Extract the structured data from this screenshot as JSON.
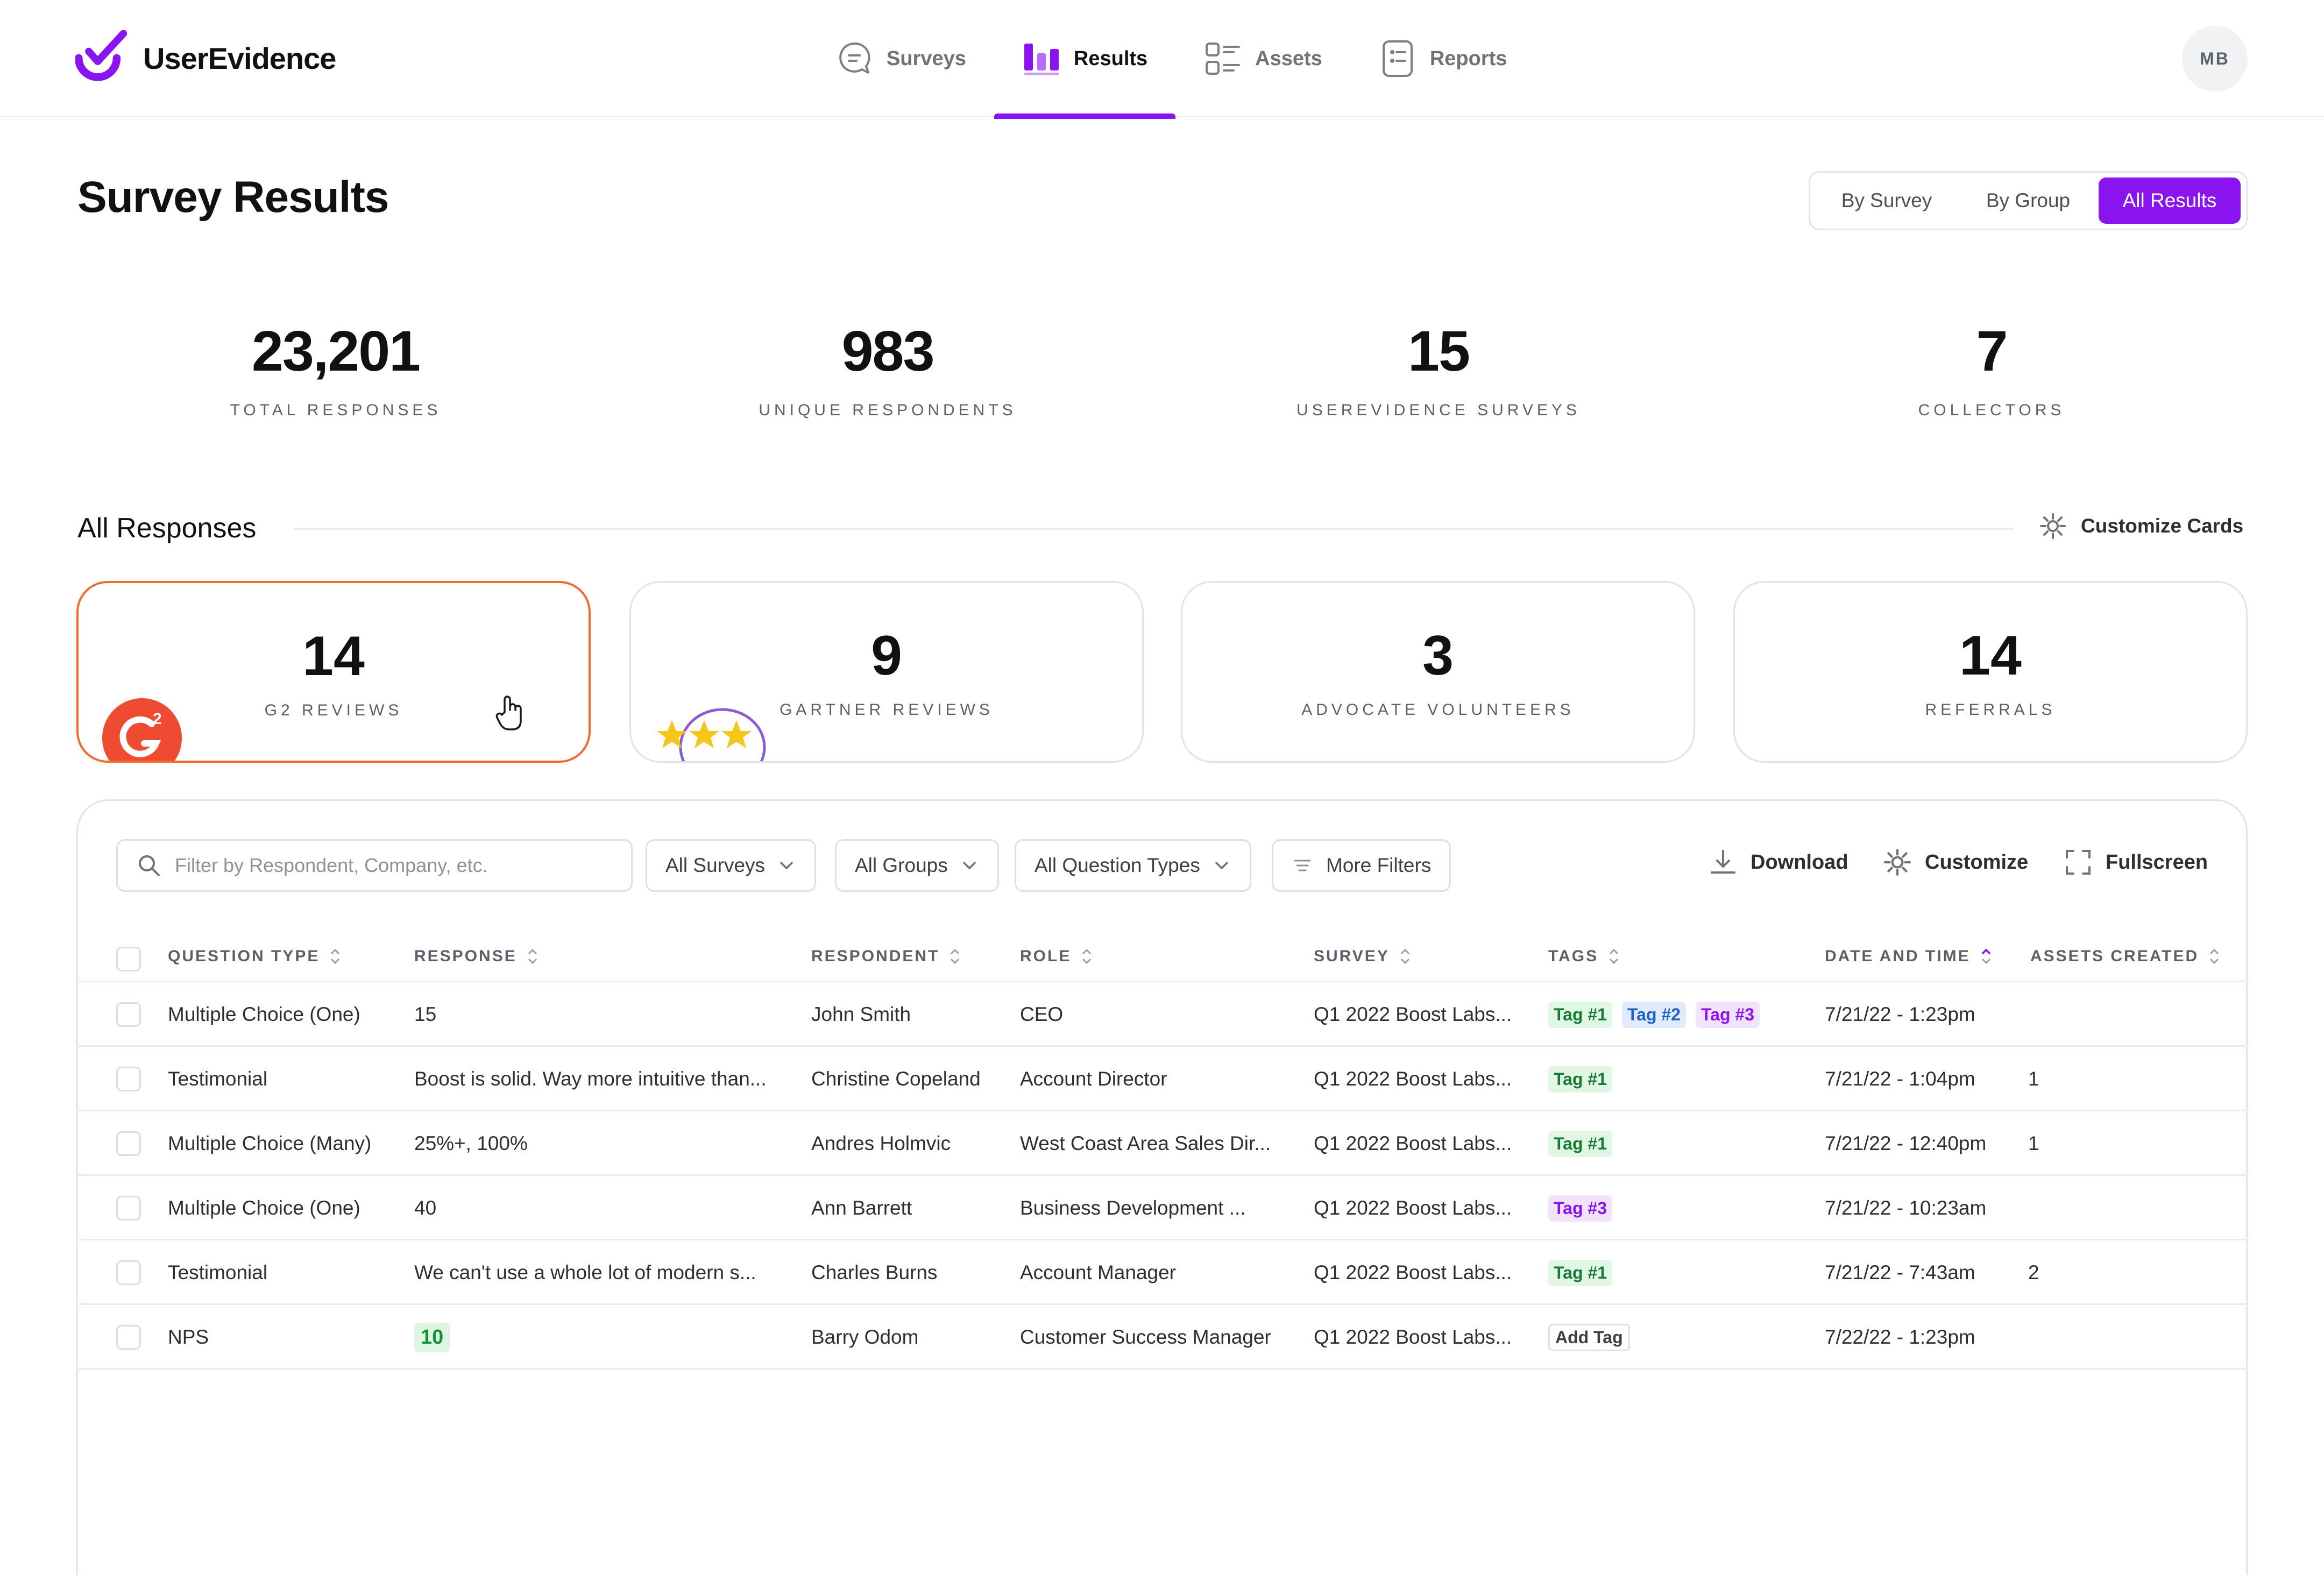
{
  "app": {
    "name": "UserEvidence",
    "brand_color": "#8a14f0",
    "highlight_color": "#ef6c2e"
  },
  "nav": {
    "items": [
      {
        "label": "Surveys",
        "icon": "chat-bubble-icon",
        "active": false
      },
      {
        "label": "Results",
        "icon": "bar-chart-icon",
        "active": true
      },
      {
        "label": "Assets",
        "icon": "list-grid-icon",
        "active": false
      },
      {
        "label": "Reports",
        "icon": "report-doc-icon",
        "active": false
      }
    ],
    "avatar_initials": "MB"
  },
  "page": {
    "title": "Survey Results",
    "view_toggle": {
      "options": [
        "By Survey",
        "By Group",
        "All Results"
      ],
      "selected": "All Results"
    }
  },
  "stats": [
    {
      "value": "23,201",
      "label": "TOTAL RESPONSES"
    },
    {
      "value": "983",
      "label": "UNIQUE RESPONDENTS"
    },
    {
      "value": "15",
      "label": "USEREVIDENCE SURVEYS"
    },
    {
      "value": "7",
      "label": "COLLECTORS"
    }
  ],
  "responses": {
    "title": "All Responses",
    "customize_cards_label": "Customize Cards",
    "cards": [
      {
        "value": "14",
        "label": "G2 REVIEWS",
        "icon": "g2-logo-icon",
        "highlighted": true
      },
      {
        "value": "9",
        "label": "GARTNER REVIEWS",
        "icon": "star-rating-icon",
        "highlighted": false
      },
      {
        "value": "3",
        "label": "ADVOCATE VOLUNTEERS",
        "highlighted": false
      },
      {
        "value": "14",
        "label": "REFERRALS",
        "highlighted": false
      }
    ]
  },
  "toolbar": {
    "search_placeholder": "Filter by Respondent, Company, etc.",
    "filters": [
      "All Surveys",
      "All Groups",
      "All Question Types"
    ],
    "more_filters_label": "More Filters",
    "download_label": "Download",
    "customize_label": "Customize",
    "fullscreen_label": "Fullscreen"
  },
  "table": {
    "columns": [
      "QUESTION TYPE",
      "RESPONSE",
      "RESPONDENT",
      "ROLE",
      "SURVEY",
      "TAGS",
      "DATE AND TIME",
      "ASSETS CREATED"
    ],
    "sorted_column": "DATE AND TIME",
    "rows": [
      {
        "question_type": "Multiple Choice (One)",
        "response": "15",
        "respondent": "John Smith",
        "role": "CEO",
        "survey": "Q1 2022 Boost Labs...",
        "tags": [
          "Tag #1",
          "Tag #2",
          "Tag #3"
        ],
        "date": "7/21/22 - 1:23pm",
        "assets": ""
      },
      {
        "question_type": "Testimonial",
        "response": "Boost is solid. Way more intuitive than...",
        "respondent": "Christine Copeland",
        "role": "Account Director",
        "survey": "Q1 2022 Boost Labs...",
        "tags": [
          "Tag #1"
        ],
        "date": "7/21/22 - 1:04pm",
        "assets": "1"
      },
      {
        "question_type": "Multiple Choice (Many)",
        "response": "25%+, 100%",
        "respondent": "Andres Holmvic",
        "role": "West Coast Area Sales Dir...",
        "survey": "Q1 2022 Boost Labs...",
        "tags": [
          "Tag #1"
        ],
        "date": "7/21/22 - 12:40pm",
        "assets": "1"
      },
      {
        "question_type": "Multiple Choice (One)",
        "response": "40",
        "respondent": "Ann Barrett",
        "role": "Business Development ...",
        "survey": "Q1 2022 Boost Labs...",
        "tags": [
          "Tag #3"
        ],
        "date": "7/21/22 - 10:23am",
        "assets": ""
      },
      {
        "question_type": "Testimonial",
        "response": "We can't use a whole lot of modern s...",
        "respondent": "Charles Burns",
        "role": "Account Manager",
        "survey": "Q1 2022 Boost Labs...",
        "tags": [
          "Tag #1"
        ],
        "date": "7/21/22 - 7:43am",
        "assets": "2"
      },
      {
        "question_type": "NPS",
        "response": "10",
        "respondent": "Barry Odom",
        "role": "Customer Success Manager",
        "survey": "Q1 2022 Boost Labs...",
        "tags": [],
        "add_tag_label": "Add Tag",
        "date": "7/22/22 - 1:23pm",
        "assets": ""
      }
    ]
  }
}
